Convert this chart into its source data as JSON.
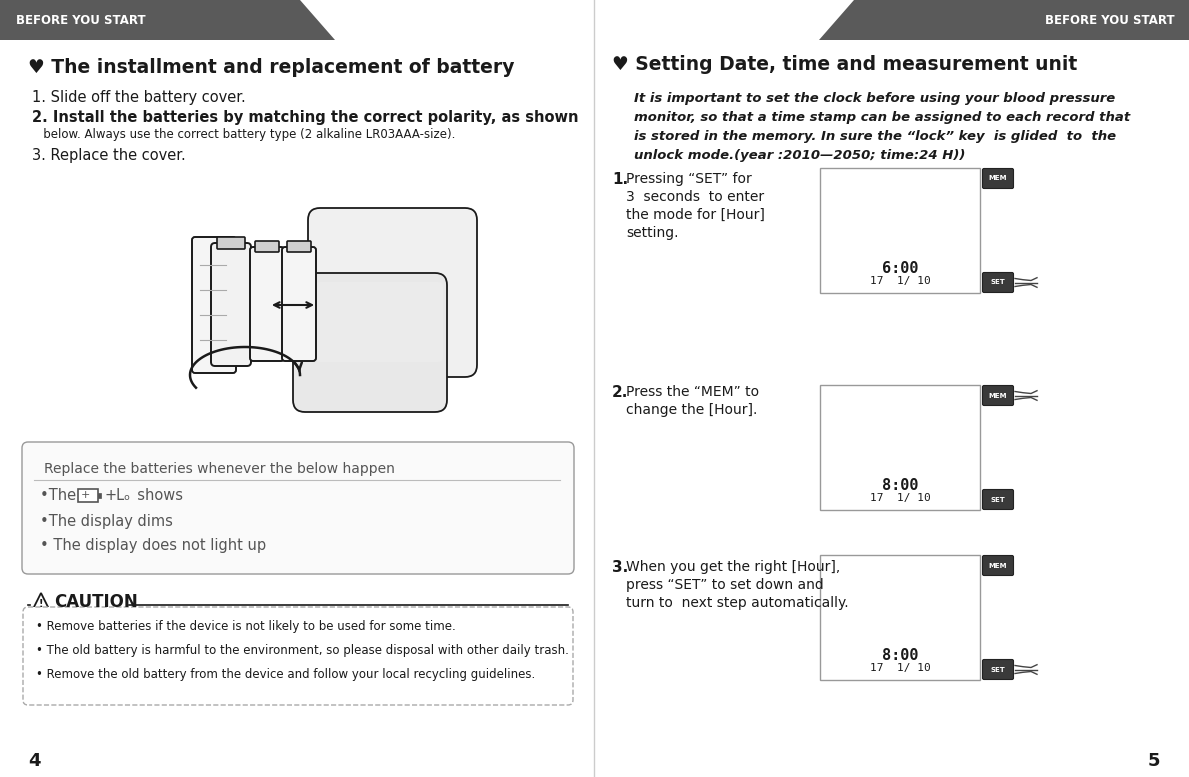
{
  "bg_color": "#ffffff",
  "header_color": "#5a5a5a",
  "header_text_color": "#ffffff",
  "header_text": "BEFORE YOU START",
  "left_title": "♥ The installment and replacement of battery",
  "right_title": "♥ Setting Date, time and measurement unit",
  "step1_line1": "1. Slide off the battery cover.",
  "step2_line1": "2. Install the batteries by matching the correct polarity, as shown",
  "step2_line2": "   below. Always use the correct battery type (2 alkaline LR03AAA-size).",
  "step3_line1": "3. Replace the cover.",
  "right_intro_lines": [
    "It is important to set the clock before using your blood pressure",
    "monitor, so that a time stamp can be assigned to each record that",
    "is stored in the memory. In sure the “lock” key  is glided  to  the",
    "unlock mode.(year :2010—2050; time:24 H))"
  ],
  "replace_box_title": "Replace the batteries whenever the below happen",
  "caution_title": "CAUTION",
  "caution_items": [
    "Remove batteries if the device is not likely to be used for some time.",
    "The old battery is harmful to the environment, so please disposal with other daily trash.",
    "Remove the old battery from the device and follow your local recycling guidelines."
  ],
  "right_steps": [
    {
      "num": "1",
      "lines": [
        "Pressing “SET” for",
        "3  seconds  to enter",
        "the mode for [Hour]",
        "setting."
      ],
      "display": [
        "6:00",
        "17  1/ 10"
      ],
      "mem_hand": false,
      "set_hand": true
    },
    {
      "num": "2",
      "lines": [
        "Press the “MEM” to",
        "change the [Hour]."
      ],
      "display": [
        "8:00",
        "17  1/ 10"
      ],
      "mem_hand": true,
      "set_hand": false
    },
    {
      "num": "3",
      "lines": [
        "When you get the right [Hour],",
        "press “SET” to set down and",
        "turn to  next step automatically."
      ],
      "display": [
        "8:00",
        "17  1/ 10"
      ],
      "mem_hand": false,
      "set_hand": true
    }
  ],
  "page_left": "4",
  "page_right": "5",
  "dark_color": "#1a1a1a",
  "gray_text": "#555555",
  "box_border": "#aaaaaa",
  "replace_text_color": "#555555"
}
